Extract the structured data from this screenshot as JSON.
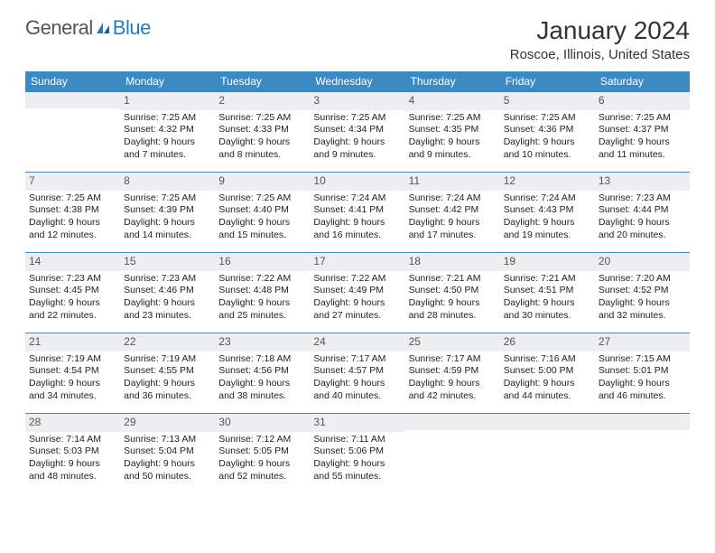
{
  "brand": {
    "name1": "General",
    "name2": "Blue"
  },
  "title": "January 2024",
  "location": "Roscoe, Illinois, United States",
  "colors": {
    "header_bg": "#3b8ac4",
    "header_text": "#ffffff",
    "daynum_bg": "#eceeef",
    "row_border": "#3b8ac4",
    "text": "#222222",
    "brand_gray": "#555555",
    "brand_blue": "#2a7ab8",
    "background": "#ffffff"
  },
  "typography": {
    "title_fontsize": 28,
    "location_fontsize": 15,
    "dayheader_fontsize": 12,
    "daynum_fontsize": 12,
    "cell_fontsize": 10.5,
    "font_family": "Arial"
  },
  "day_headers": [
    "Sunday",
    "Monday",
    "Tuesday",
    "Wednesday",
    "Thursday",
    "Friday",
    "Saturday"
  ],
  "weeks": [
    [
      {
        "n": "",
        "sr": "",
        "ss": "",
        "dl1": "",
        "dl2": ""
      },
      {
        "n": "1",
        "sr": "Sunrise: 7:25 AM",
        "ss": "Sunset: 4:32 PM",
        "dl1": "Daylight: 9 hours",
        "dl2": "and 7 minutes."
      },
      {
        "n": "2",
        "sr": "Sunrise: 7:25 AM",
        "ss": "Sunset: 4:33 PM",
        "dl1": "Daylight: 9 hours",
        "dl2": "and 8 minutes."
      },
      {
        "n": "3",
        "sr": "Sunrise: 7:25 AM",
        "ss": "Sunset: 4:34 PM",
        "dl1": "Daylight: 9 hours",
        "dl2": "and 9 minutes."
      },
      {
        "n": "4",
        "sr": "Sunrise: 7:25 AM",
        "ss": "Sunset: 4:35 PM",
        "dl1": "Daylight: 9 hours",
        "dl2": "and 9 minutes."
      },
      {
        "n": "5",
        "sr": "Sunrise: 7:25 AM",
        "ss": "Sunset: 4:36 PM",
        "dl1": "Daylight: 9 hours",
        "dl2": "and 10 minutes."
      },
      {
        "n": "6",
        "sr": "Sunrise: 7:25 AM",
        "ss": "Sunset: 4:37 PM",
        "dl1": "Daylight: 9 hours",
        "dl2": "and 11 minutes."
      }
    ],
    [
      {
        "n": "7",
        "sr": "Sunrise: 7:25 AM",
        "ss": "Sunset: 4:38 PM",
        "dl1": "Daylight: 9 hours",
        "dl2": "and 12 minutes."
      },
      {
        "n": "8",
        "sr": "Sunrise: 7:25 AM",
        "ss": "Sunset: 4:39 PM",
        "dl1": "Daylight: 9 hours",
        "dl2": "and 14 minutes."
      },
      {
        "n": "9",
        "sr": "Sunrise: 7:25 AM",
        "ss": "Sunset: 4:40 PM",
        "dl1": "Daylight: 9 hours",
        "dl2": "and 15 minutes."
      },
      {
        "n": "10",
        "sr": "Sunrise: 7:24 AM",
        "ss": "Sunset: 4:41 PM",
        "dl1": "Daylight: 9 hours",
        "dl2": "and 16 minutes."
      },
      {
        "n": "11",
        "sr": "Sunrise: 7:24 AM",
        "ss": "Sunset: 4:42 PM",
        "dl1": "Daylight: 9 hours",
        "dl2": "and 17 minutes."
      },
      {
        "n": "12",
        "sr": "Sunrise: 7:24 AM",
        "ss": "Sunset: 4:43 PM",
        "dl1": "Daylight: 9 hours",
        "dl2": "and 19 minutes."
      },
      {
        "n": "13",
        "sr": "Sunrise: 7:23 AM",
        "ss": "Sunset: 4:44 PM",
        "dl1": "Daylight: 9 hours",
        "dl2": "and 20 minutes."
      }
    ],
    [
      {
        "n": "14",
        "sr": "Sunrise: 7:23 AM",
        "ss": "Sunset: 4:45 PM",
        "dl1": "Daylight: 9 hours",
        "dl2": "and 22 minutes."
      },
      {
        "n": "15",
        "sr": "Sunrise: 7:23 AM",
        "ss": "Sunset: 4:46 PM",
        "dl1": "Daylight: 9 hours",
        "dl2": "and 23 minutes."
      },
      {
        "n": "16",
        "sr": "Sunrise: 7:22 AM",
        "ss": "Sunset: 4:48 PM",
        "dl1": "Daylight: 9 hours",
        "dl2": "and 25 minutes."
      },
      {
        "n": "17",
        "sr": "Sunrise: 7:22 AM",
        "ss": "Sunset: 4:49 PM",
        "dl1": "Daylight: 9 hours",
        "dl2": "and 27 minutes."
      },
      {
        "n": "18",
        "sr": "Sunrise: 7:21 AM",
        "ss": "Sunset: 4:50 PM",
        "dl1": "Daylight: 9 hours",
        "dl2": "and 28 minutes."
      },
      {
        "n": "19",
        "sr": "Sunrise: 7:21 AM",
        "ss": "Sunset: 4:51 PM",
        "dl1": "Daylight: 9 hours",
        "dl2": "and 30 minutes."
      },
      {
        "n": "20",
        "sr": "Sunrise: 7:20 AM",
        "ss": "Sunset: 4:52 PM",
        "dl1": "Daylight: 9 hours",
        "dl2": "and 32 minutes."
      }
    ],
    [
      {
        "n": "21",
        "sr": "Sunrise: 7:19 AM",
        "ss": "Sunset: 4:54 PM",
        "dl1": "Daylight: 9 hours",
        "dl2": "and 34 minutes."
      },
      {
        "n": "22",
        "sr": "Sunrise: 7:19 AM",
        "ss": "Sunset: 4:55 PM",
        "dl1": "Daylight: 9 hours",
        "dl2": "and 36 minutes."
      },
      {
        "n": "23",
        "sr": "Sunrise: 7:18 AM",
        "ss": "Sunset: 4:56 PM",
        "dl1": "Daylight: 9 hours",
        "dl2": "and 38 minutes."
      },
      {
        "n": "24",
        "sr": "Sunrise: 7:17 AM",
        "ss": "Sunset: 4:57 PM",
        "dl1": "Daylight: 9 hours",
        "dl2": "and 40 minutes."
      },
      {
        "n": "25",
        "sr": "Sunrise: 7:17 AM",
        "ss": "Sunset: 4:59 PM",
        "dl1": "Daylight: 9 hours",
        "dl2": "and 42 minutes."
      },
      {
        "n": "26",
        "sr": "Sunrise: 7:16 AM",
        "ss": "Sunset: 5:00 PM",
        "dl1": "Daylight: 9 hours",
        "dl2": "and 44 minutes."
      },
      {
        "n": "27",
        "sr": "Sunrise: 7:15 AM",
        "ss": "Sunset: 5:01 PM",
        "dl1": "Daylight: 9 hours",
        "dl2": "and 46 minutes."
      }
    ],
    [
      {
        "n": "28",
        "sr": "Sunrise: 7:14 AM",
        "ss": "Sunset: 5:03 PM",
        "dl1": "Daylight: 9 hours",
        "dl2": "and 48 minutes."
      },
      {
        "n": "29",
        "sr": "Sunrise: 7:13 AM",
        "ss": "Sunset: 5:04 PM",
        "dl1": "Daylight: 9 hours",
        "dl2": "and 50 minutes."
      },
      {
        "n": "30",
        "sr": "Sunrise: 7:12 AM",
        "ss": "Sunset: 5:05 PM",
        "dl1": "Daylight: 9 hours",
        "dl2": "and 52 minutes."
      },
      {
        "n": "31",
        "sr": "Sunrise: 7:11 AM",
        "ss": "Sunset: 5:06 PM",
        "dl1": "Daylight: 9 hours",
        "dl2": "and 55 minutes."
      },
      {
        "n": "",
        "sr": "",
        "ss": "",
        "dl1": "",
        "dl2": ""
      },
      {
        "n": "",
        "sr": "",
        "ss": "",
        "dl1": "",
        "dl2": ""
      },
      {
        "n": "",
        "sr": "",
        "ss": "",
        "dl1": "",
        "dl2": ""
      }
    ]
  ]
}
